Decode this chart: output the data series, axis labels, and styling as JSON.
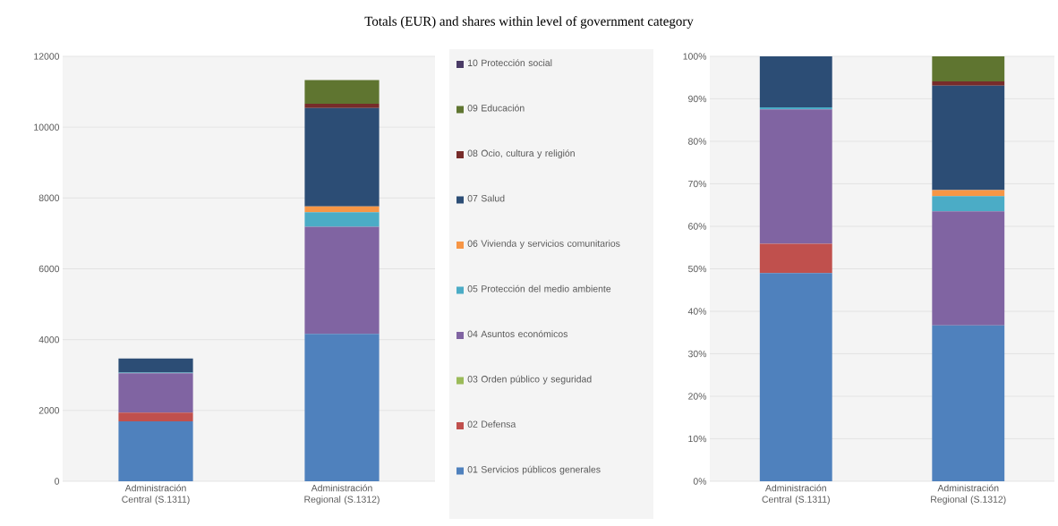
{
  "chart_data": [
    {
      "type": "bar",
      "title": "Totals (EUR) and shares within level of government category",
      "stacked": true,
      "grid": "y",
      "legend": "right",
      "categories": [
        "Administración Central (S.1311)",
        "Administración Regional (S.1312)"
      ],
      "ylim": [
        0,
        12000
      ],
      "yticks": [
        0,
        2000,
        4000,
        6000,
        8000,
        10000,
        12000
      ],
      "series": [
        {
          "name": "01 Servicios públicos generales",
          "color": "#4f81bd",
          "values": [
            1690,
            4160
          ]
        },
        {
          "name": "02 Defensa",
          "color": "#c0504d",
          "values": [
            250,
            0
          ]
        },
        {
          "name": "03 Orden público y seguridad",
          "color": "#9bbb59",
          "values": [
            0,
            0
          ]
        },
        {
          "name": "04  Asuntos económicos",
          "color": "#8064a2",
          "values": [
            1110,
            3030
          ]
        },
        {
          "name": "05 Protección del medio ambiente",
          "color": "#4bacc6",
          "values": [
            20,
            410
          ]
        },
        {
          "name": "06 Vivienda y servicios comunitarios",
          "color": "#f79646",
          "values": [
            0,
            160
          ]
        },
        {
          "name": "07 Salud",
          "color": "#2c4d75",
          "values": [
            400,
            2780
          ]
        },
        {
          "name": "08 Ocio, cultura y religión",
          "color": "#772c2a",
          "values": [
            0,
            120
          ]
        },
        {
          "name": "09 Educación",
          "color": "#5f7530",
          "values": [
            null,
            670
          ]
        },
        {
          "name": "10 Protección social",
          "color": "#4a3b66",
          "values": [
            0,
            0
          ]
        }
      ]
    },
    {
      "type": "bar",
      "stacked": true,
      "grid": "y",
      "categories": [
        "Administración Central (S.1311)",
        "Administración Regional (S.1312)"
      ],
      "ylim": [
        0,
        100
      ],
      "yticks": [
        {
          "value": 0,
          "label": "0%"
        },
        {
          "value": 10,
          "label": "10%"
        },
        {
          "value": 20,
          "label": "20%"
        },
        {
          "value": 30,
          "label": "30%"
        },
        {
          "value": 40,
          "label": "40%"
        },
        {
          "value": 50,
          "label": "50%"
        },
        {
          "value": 60,
          "label": "60%"
        },
        {
          "value": 70,
          "label": "70%"
        },
        {
          "value": 80,
          "label": "80%"
        },
        {
          "value": 90,
          "label": "90%"
        },
        {
          "value": 100,
          "label": "100%"
        }
      ],
      "series": [
        {
          "color": "#4f81bd",
          "values": [
            49.0,
            36.7
          ]
        },
        {
          "color": "#c0504d",
          "values": [
            6.9,
            0
          ]
        },
        {
          "color": "#9bbb59",
          "values": [
            0,
            0
          ]
        },
        {
          "color": "#8064a2",
          "values": [
            31.6,
            26.8
          ]
        },
        {
          "color": "#4bacc6",
          "values": [
            0.5,
            3.6
          ]
        },
        {
          "color": "#f79646",
          "values": [
            0,
            1.4
          ]
        },
        {
          "color": "#2c4d75",
          "values": [
            12.0,
            24.6
          ]
        },
        {
          "color": "#772c2a",
          "values": [
            0,
            1.0
          ]
        },
        {
          "color": "#5f7530",
          "values": [
            0,
            5.9
          ]
        },
        {
          "color": "#4a3b66",
          "values": [
            0,
            0
          ]
        }
      ]
    }
  ]
}
